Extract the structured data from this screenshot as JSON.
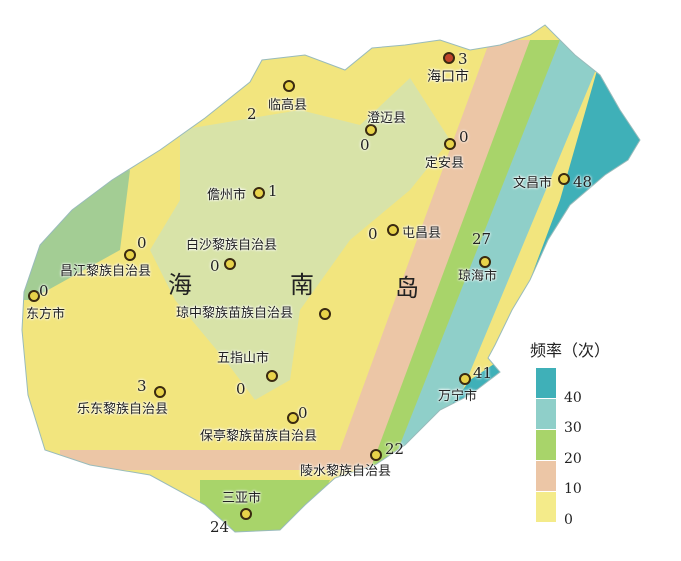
{
  "map": {
    "island_name": [
      "海",
      "南",
      "岛"
    ],
    "stations": [
      {
        "name": "海口市",
        "value": "3",
        "capital": true
      },
      {
        "name": "临高县",
        "value": "2"
      },
      {
        "name": "澄迈县",
        "value": "0"
      },
      {
        "name": "定安县",
        "value": "0"
      },
      {
        "name": "文昌市",
        "value": "48"
      },
      {
        "name": "儋州市",
        "value": "1"
      },
      {
        "name": "屯昌县",
        "value": "0"
      },
      {
        "name": "白沙黎族自治县",
        "value": "0"
      },
      {
        "name": "昌江黎族自治县",
        "value": "0"
      },
      {
        "name": "琼海市",
        "value": "27"
      },
      {
        "name": "东方市",
        "value": "0"
      },
      {
        "name": "琼中黎族苗族自治县",
        "value": ""
      },
      {
        "name": "五指山市",
        "value": "0"
      },
      {
        "name": "乐东黎族自治县",
        "value": "3"
      },
      {
        "name": "万宁市",
        "value": "41"
      },
      {
        "name": "保亭黎族苗族自治县",
        "value": "0"
      },
      {
        "name": "陵水黎族自治县",
        "value": "22"
      },
      {
        "name": "三亚市",
        "value": "24"
      }
    ]
  },
  "legend": {
    "title": "频率（次）",
    "items": [
      {
        "label": "40",
        "color": "#3fb0b8"
      },
      {
        "label": "30",
        "color": "#8fcfc9"
      },
      {
        "label": "20",
        "color": "#a8d46a"
      },
      {
        "label": "10",
        "color": "#ecc6a6"
      },
      {
        "label": "0",
        "color": "#f4eb8a"
      }
    ]
  }
}
